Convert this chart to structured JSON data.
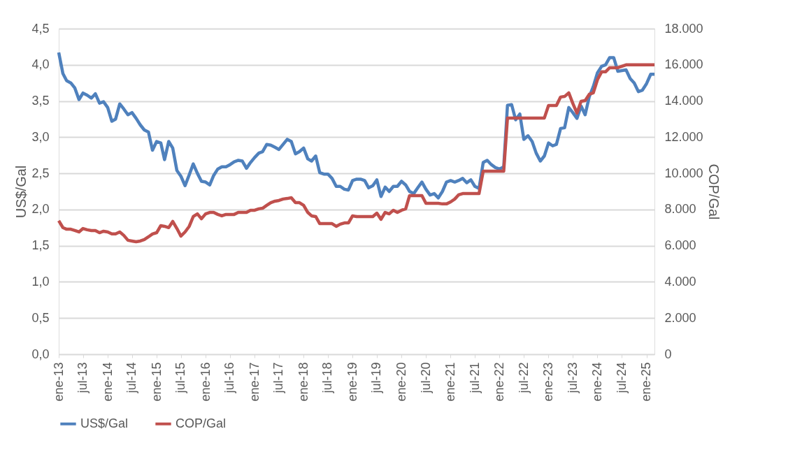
{
  "chart_data": {
    "type": "line",
    "ylabel": "US$/Gal",
    "y2label": "COP/Gal",
    "xlim": [
      "2013-01",
      "2025-03"
    ],
    "xticks": [
      {
        "value": "2013-01",
        "label": "ene-13"
      },
      {
        "value": "2013-07",
        "label": "jul-13"
      },
      {
        "value": "2014-01",
        "label": "ene-14"
      },
      {
        "value": "2014-07",
        "label": "jul-14"
      },
      {
        "value": "2015-01",
        "label": "ene-15"
      },
      {
        "value": "2015-07",
        "label": "jul-15"
      },
      {
        "value": "2016-01",
        "label": "ene-16"
      },
      {
        "value": "2016-07",
        "label": "jul-16"
      },
      {
        "value": "2017-01",
        "label": "ene-17"
      },
      {
        "value": "2017-07",
        "label": "jul-17"
      },
      {
        "value": "2018-01",
        "label": "ene-18"
      },
      {
        "value": "2018-07",
        "label": "jul-18"
      },
      {
        "value": "2019-01",
        "label": "ene-19"
      },
      {
        "value": "2019-07",
        "label": "jul-19"
      },
      {
        "value": "2020-01",
        "label": "ene-20"
      },
      {
        "value": "2020-07",
        "label": "jul-20"
      },
      {
        "value": "2021-01",
        "label": "ene-21"
      },
      {
        "value": "2021-07",
        "label": "jul-21"
      },
      {
        "value": "2022-01",
        "label": "ene-22"
      },
      {
        "value": "2022-07",
        "label": "jul-22"
      },
      {
        "value": "2023-01",
        "label": "ene-23"
      },
      {
        "value": "2023-07",
        "label": "jul-23"
      },
      {
        "value": "2024-01",
        "label": "ene-24"
      },
      {
        "value": "2024-07",
        "label": "jul-24"
      },
      {
        "value": "2025-01",
        "label": "ene-25"
      }
    ],
    "ylim": [
      0,
      4.5
    ],
    "yticks": [
      {
        "value": 0,
        "label": "0,0"
      },
      {
        "value": 0.5,
        "label": "0,5"
      },
      {
        "value": 1,
        "label": "1,0"
      },
      {
        "value": 1.5,
        "label": "1,5"
      },
      {
        "value": 2,
        "label": "2,0"
      },
      {
        "value": 2.5,
        "label": "2,5"
      },
      {
        "value": 3,
        "label": "3,0"
      },
      {
        "value": 3.5,
        "label": "3,5"
      },
      {
        "value": 4,
        "label": "4,0"
      },
      {
        "value": 4.5,
        "label": "4,5"
      }
    ],
    "y2lim": [
      0,
      18000
    ],
    "y2ticks": [
      {
        "value": 0,
        "label": "0"
      },
      {
        "value": 2000,
        "label": "2.000"
      },
      {
        "value": 4000,
        "label": "4.000"
      },
      {
        "value": 6000,
        "label": "6.000"
      },
      {
        "value": 8000,
        "label": "8.000"
      },
      {
        "value": 10000,
        "label": "10.000"
      },
      {
        "value": 12000,
        "label": "12.000"
      },
      {
        "value": 14000,
        "label": "14.000"
      },
      {
        "value": 16000,
        "label": "16.000"
      },
      {
        "value": 18000,
        "label": "18.000"
      }
    ],
    "grid": "y",
    "legend": "bottom",
    "marker": "none",
    "line_style": "solid",
    "x": [
      "2013-01",
      "2013-02",
      "2013-03",
      "2013-04",
      "2013-05",
      "2013-06",
      "2013-07",
      "2013-08",
      "2013-09",
      "2013-10",
      "2013-11",
      "2013-12",
      "2014-01",
      "2014-02",
      "2014-03",
      "2014-04",
      "2014-05",
      "2014-06",
      "2014-07",
      "2014-08",
      "2014-09",
      "2014-10",
      "2014-11",
      "2014-12",
      "2015-01",
      "2015-02",
      "2015-03",
      "2015-04",
      "2015-05",
      "2015-06",
      "2015-07",
      "2015-08",
      "2015-09",
      "2015-10",
      "2015-11",
      "2015-12",
      "2016-01",
      "2016-02",
      "2016-03",
      "2016-04",
      "2016-05",
      "2016-06",
      "2016-07",
      "2016-08",
      "2016-09",
      "2016-10",
      "2016-11",
      "2016-12",
      "2017-01",
      "2017-02",
      "2017-03",
      "2017-04",
      "2017-05",
      "2017-06",
      "2017-07",
      "2017-08",
      "2017-09",
      "2017-10",
      "2017-11",
      "2017-12",
      "2018-01",
      "2018-02",
      "2018-03",
      "2018-04",
      "2018-05",
      "2018-06",
      "2018-07",
      "2018-08",
      "2018-09",
      "2018-10",
      "2018-11",
      "2018-12",
      "2019-01",
      "2019-02",
      "2019-03",
      "2019-04",
      "2019-05",
      "2019-06",
      "2019-07",
      "2019-08",
      "2019-09",
      "2019-10",
      "2019-11",
      "2019-12",
      "2020-01",
      "2020-02",
      "2020-03",
      "2020-04",
      "2020-05",
      "2020-06",
      "2020-07",
      "2020-08",
      "2020-09",
      "2020-10",
      "2020-11",
      "2020-12",
      "2021-01",
      "2021-02",
      "2021-03",
      "2021-04",
      "2021-05",
      "2021-06",
      "2021-07",
      "2021-08",
      "2021-09",
      "2021-10",
      "2021-11",
      "2021-12",
      "2022-01",
      "2022-02",
      "2022-03",
      "2022-04",
      "2022-05",
      "2022-06",
      "2022-07",
      "2022-08",
      "2022-09",
      "2022-10",
      "2022-11",
      "2022-12",
      "2023-01",
      "2023-02",
      "2023-03",
      "2023-04",
      "2023-05",
      "2023-06",
      "2023-07",
      "2023-08",
      "2023-09",
      "2023-10",
      "2023-11",
      "2023-12",
      "2024-01",
      "2024-02",
      "2024-03",
      "2024-04",
      "2024-05",
      "2024-06",
      "2024-07",
      "2024-08",
      "2024-09",
      "2024-10",
      "2024-11",
      "2024-12",
      "2025-01",
      "2025-02",
      "2025-03"
    ],
    "series": [
      {
        "name": "US$/Gal",
        "color": "#4f81bd",
        "values": [
          4.17,
          3.88,
          3.78,
          3.75,
          3.68,
          3.52,
          3.61,
          3.58,
          3.54,
          3.6,
          3.47,
          3.49,
          3.41,
          3.22,
          3.25,
          3.46,
          3.39,
          3.31,
          3.34,
          3.26,
          3.17,
          3.1,
          3.07,
          2.82,
          2.94,
          2.92,
          2.69,
          2.94,
          2.85,
          2.54,
          2.46,
          2.33,
          2.48,
          2.63,
          2.5,
          2.39,
          2.38,
          2.34,
          2.47,
          2.56,
          2.59,
          2.59,
          2.62,
          2.66,
          2.68,
          2.67,
          2.57,
          2.65,
          2.72,
          2.78,
          2.8,
          2.9,
          2.89,
          2.86,
          2.83,
          2.9,
          2.97,
          2.94,
          2.77,
          2.8,
          2.85,
          2.7,
          2.67,
          2.74,
          2.51,
          2.49,
          2.49,
          2.43,
          2.32,
          2.32,
          2.28,
          2.27,
          2.4,
          2.42,
          2.42,
          2.4,
          2.3,
          2.33,
          2.41,
          2.18,
          2.31,
          2.25,
          2.32,
          2.32,
          2.39,
          2.34,
          2.25,
          2.22,
          2.3,
          2.38,
          2.28,
          2.2,
          2.22,
          2.16,
          2.25,
          2.38,
          2.4,
          2.38,
          2.4,
          2.43,
          2.37,
          2.41,
          2.32,
          2.29,
          2.65,
          2.68,
          2.62,
          2.58,
          2.56,
          2.59,
          3.44,
          3.45,
          3.24,
          3.32,
          2.97,
          3.02,
          2.94,
          2.78,
          2.67,
          2.74,
          2.92,
          2.88,
          2.9,
          3.12,
          3.13,
          3.41,
          3.34,
          3.26,
          3.43,
          3.31,
          3.56,
          3.7,
          3.89,
          3.98,
          4.0,
          4.1,
          4.1,
          3.91,
          3.92,
          3.93,
          3.81,
          3.75,
          3.63,
          3.65,
          3.74,
          3.87,
          3.87
        ]
      },
      {
        "name": "COP/Gal",
        "color": "#c0504d",
        "axis": "y2",
        "values": [
          7380,
          7000,
          6910,
          6910,
          6840,
          6760,
          6950,
          6880,
          6840,
          6840,
          6720,
          6800,
          6760,
          6650,
          6650,
          6760,
          6570,
          6300,
          6260,
          6220,
          6260,
          6340,
          6490,
          6650,
          6720,
          7110,
          7070,
          7000,
          7340,
          6950,
          6530,
          6760,
          7070,
          7610,
          7760,
          7490,
          7760,
          7840,
          7840,
          7730,
          7650,
          7730,
          7730,
          7730,
          7840,
          7840,
          7840,
          7960,
          7960,
          8040,
          8070,
          8230,
          8380,
          8460,
          8500,
          8580,
          8610,
          8650,
          8380,
          8380,
          8230,
          7840,
          7650,
          7610,
          7220,
          7220,
          7220,
          7220,
          7070,
          7190,
          7260,
          7260,
          7650,
          7610,
          7610,
          7610,
          7610,
          7610,
          7800,
          7460,
          7840,
          7760,
          7960,
          7840,
          7960,
          8040,
          8770,
          8770,
          8770,
          8770,
          8340,
          8340,
          8340,
          8340,
          8310,
          8310,
          8420,
          8580,
          8810,
          8880,
          8880,
          8880,
          8880,
          8880,
          10120,
          10120,
          10120,
          10120,
          10120,
          10120,
          13060,
          13060,
          13060,
          13060,
          13060,
          13060,
          13060,
          13060,
          13060,
          13060,
          13750,
          13750,
          13750,
          14220,
          14250,
          14450,
          13870,
          13330,
          13980,
          14020,
          14370,
          14450,
          15180,
          15610,
          15610,
          15840,
          15840,
          15840,
          15920,
          16000,
          16000,
          16000,
          16000,
          16000,
          16000,
          16000,
          16000
        ]
      }
    ]
  }
}
